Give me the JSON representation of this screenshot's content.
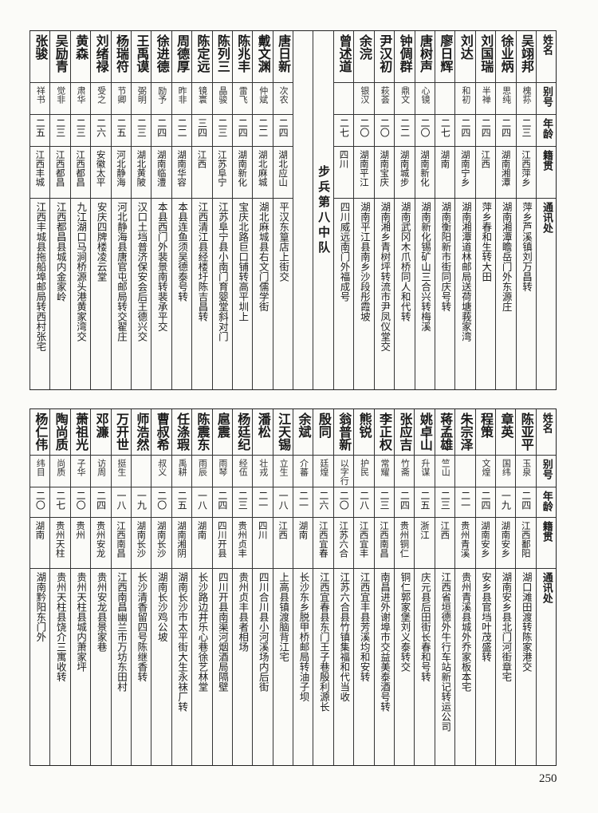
{
  "headers": [
    "姓名",
    "别号",
    "年龄",
    "籍贯",
    "通讯处"
  ],
  "top": {
    "right_group": [
      {
        "name": "吴翊邦",
        "alias": "槐荪",
        "age": "二三",
        "native": "江西萍乡",
        "address": "萍乡芦溪镇刘万昌转"
      },
      {
        "name": "徐业炳",
        "alias": "思纯",
        "age": "二四",
        "native": "湖南湘潭",
        "address": "湖南湘潭瞻岳门外东源庄"
      },
      {
        "name": "刘国瑞",
        "alias": "半禅",
        "age": "二四",
        "native": "江西",
        "address": "萍乡春和生转大田"
      },
      {
        "name": "刘达",
        "alias": "和初",
        "age": "二四",
        "native": "湖南宁乡",
        "address": "湖南湘潭道林邮局送荷塘莪家湾"
      },
      {
        "name": "廖日辉",
        "alias": "",
        "age": "二七",
        "native": "湖南",
        "address": "湖南衡阳新市街同庆号转"
      },
      {
        "name": "唐树声",
        "alias": "心镜",
        "age": "二〇",
        "native": "湖南新化",
        "address": "湖南新化锡矿山三合兴转梅溪"
      },
      {
        "name": "钟倜群",
        "alias": "鼎文",
        "age": "二二",
        "native": "湖南城步",
        "address": "湖南武冈木爪桥同人和代转"
      },
      {
        "name": "尹汉初",
        "alias": "萩荟",
        "age": "二〇",
        "native": "湖南宝庆",
        "address": "湖南湘乡青树坪转流市尹凤仪堂交"
      },
      {
        "name": "余浣",
        "alias": "银汉",
        "age": "二〇",
        "native": "湖南平江",
        "address": "湖南平江县南乡沙段彤霞坡"
      },
      {
        "name": "曾述道",
        "alias": "",
        "age": "二七",
        "native": "四川",
        "address": "四川威远南门外福成号"
      }
    ],
    "unit_label": "步兵第八中队",
    "left_group": [
      {
        "name": "唐日新",
        "alias": "次农",
        "age": "二四",
        "native": "湖北应山",
        "address": "平汉东篁店上街交"
      },
      {
        "name": "戴文渊",
        "alias": "仲斌",
        "age": "二二",
        "native": "湖北麻城",
        "address": "湖北麻城县右文门儒学街"
      },
      {
        "name": "陈兆丰",
        "alias": "雷飞",
        "age": "二四",
        "native": "湖南新化",
        "address": "宝庆北路巨口铺转高平圳上"
      },
      {
        "name": "陈列三",
        "alias": "晶骏",
        "age": "二三",
        "native": "江苏阜宁",
        "address": "江苏阜宁县小南门育婴堂斜对门"
      },
      {
        "name": "陈定远",
        "alias": "镜寰",
        "age": "三四",
        "native": "江西",
        "address": "江西清江县经楼圩陈吉昌转"
      },
      {
        "name": "周德厚",
        "alias": "昨非",
        "age": "二二",
        "native": "湖南华容",
        "address": "本县连鱼须吴德泰号转"
      },
      {
        "name": "徐进德",
        "alias": "励予",
        "age": "二四",
        "native": "湖南临澧",
        "address": "本县西门外裴景南转裴承平交"
      },
      {
        "name": "王禹谟",
        "alias": "弼明",
        "age": "二三",
        "native": "湖北黄陂",
        "address": "汉口土垱普济保安会后王德兴交"
      },
      {
        "name": "杨瑞符",
        "alias": "节卿",
        "age": "二五",
        "native": "河北静海",
        "address": "河北静海县唐官屯邮局转交翟庄"
      },
      {
        "name": "刘绪禄",
        "alias": "受之",
        "age": "二六",
        "native": "安徽太平",
        "address": "安庆四牌楼凌云堂"
      },
      {
        "name": "黄森",
        "alias": "肃华",
        "age": "二三",
        "native": "江西都昌",
        "address": "九江湖口马涧桥源头港黄家湾交"
      },
      {
        "name": "吴励青",
        "alias": "觉非",
        "age": "二三",
        "native": "江西都昌",
        "address": "江西都昌县城内金家岭"
      },
      {
        "name": "张骏",
        "alias": "祥书",
        "age": "二五",
        "native": "江西丰城",
        "address": "江西丰城县拖船埠邮局转西村张宅"
      }
    ]
  },
  "bottom": [
    {
      "name": "陈亚平",
      "alias": "玉泉",
      "age": "二四",
      "native": "江西鄱阳",
      "address": "湖口滩田渡转陈家港交"
    },
    {
      "name": "章英",
      "alias": "国纬",
      "age": "一九",
      "native": "湖南安乡",
      "address": "湖南安乡县北门河街章宅"
    },
    {
      "name": "程策",
      "alias": "文煌",
      "age": "二四",
      "native": "湖南安乡",
      "address": "安乡县官垱叶茂盛转"
    },
    {
      "name": "朱宗泽",
      "alias": "",
      "age": "二一",
      "native": "贵州青溪",
      "address": "贵州青溪县城外乔家板本宅"
    },
    {
      "name": "蒋孟雄",
      "alias": "竺山",
      "age": "二三",
      "native": "江西",
      "address": "江西省垣德外牛行车站新记转运公司"
    },
    {
      "name": "姚卓山",
      "alias": "升谋",
      "age": "二五",
      "native": "浙江",
      "address": "庆元县后田街长春和号转"
    },
    {
      "name": "张应吉",
      "alias": "竹斋",
      "age": "二四",
      "native": "贵州铜仁",
      "address": "铜仁郭家堡刘义泰转交"
    },
    {
      "name": "李正权",
      "alias": "常耀",
      "age": "二三",
      "native": "江西南昌",
      "address": "南昌进外谢埠市交益美泰酒号转"
    },
    {
      "name": "熊锐",
      "alias": "护民",
      "age": "二八",
      "native": "江西宜丰",
      "address": "江西宜丰县芳溪均和安转"
    },
    {
      "name": "翁普新",
      "alias": "以字行",
      "age": "二〇",
      "native": "江苏六合",
      "address": "江苏六合县竹镇集福和代当收"
    },
    {
      "name": "殷同",
      "alias": "廷煌",
      "age": "二六",
      "native": "江西宜春",
      "address": "江西宜春县东门王子巷殷利源长"
    },
    {
      "name": "余斌",
      "alias": "介蕃",
      "age": "二一",
      "native": "湖南",
      "address": "长沙东乡脱甲桥邮局转油子坝"
    },
    {
      "name": "江天锡",
      "alias": "立生",
      "age": "一八",
      "native": "江西",
      "address": "上高县镇渡脑背江宅"
    },
    {
      "name": "潘松",
      "alias": "壮戎",
      "age": "二一",
      "native": "四川",
      "address": "四川合川县小河溪场内后街"
    },
    {
      "name": "杨廷纪",
      "alias": "经伍",
      "age": "二三",
      "native": "贵州贞丰",
      "address": "贵州贞丰县者相场"
    },
    {
      "name": "扈震",
      "alias": "雨琴",
      "age": "二四",
      "native": "四川开县",
      "address": "四川开县南渠河烟酒局隔壁"
    },
    {
      "name": "陈震东",
      "alias": "雨辰",
      "age": "一八",
      "native": "湖南",
      "address": "长沙路边井乐心巷徐艺林堂"
    },
    {
      "name": "任涤瑕",
      "alias": "禹耕",
      "age": "二五",
      "native": "湖南湘阴",
      "address": "湖南长沙市太平街大生永袜厂转"
    },
    {
      "name": "曹叔希",
      "alias": "叔义",
      "age": "二〇",
      "native": "湖南长沙",
      "address": "湖南长沙鸡公坡"
    },
    {
      "name": "师浩然",
      "alias": "",
      "age": "一九",
      "native": "湖南长沙",
      "address": "长沙清香留四号陈继香转"
    },
    {
      "name": "万开世",
      "alias": "挺生",
      "age": "一八",
      "native": "江西南昌",
      "address": "江西南昌幽兰市万坊东田村"
    },
    {
      "name": "邓濂",
      "alias": "访周",
      "age": "二四",
      "native": "贵州安龙",
      "address": "贵州安龙县景家巷"
    },
    {
      "name": "萧祖光",
      "alias": "子华",
      "age": "二〇",
      "native": "贵州",
      "address": "贵州天柱县城内萧家坪"
    },
    {
      "name": "陶尚质",
      "alias": "尚质",
      "age": "二七",
      "native": "贵州天柱",
      "address": "贵州天柱县饶介三寓收转"
    },
    {
      "name": "杨仁伟",
      "alias": "纬目",
      "age": "二〇",
      "native": "湖南",
      "address": "湖南黔阳东门外"
    }
  ],
  "page_number": "250"
}
